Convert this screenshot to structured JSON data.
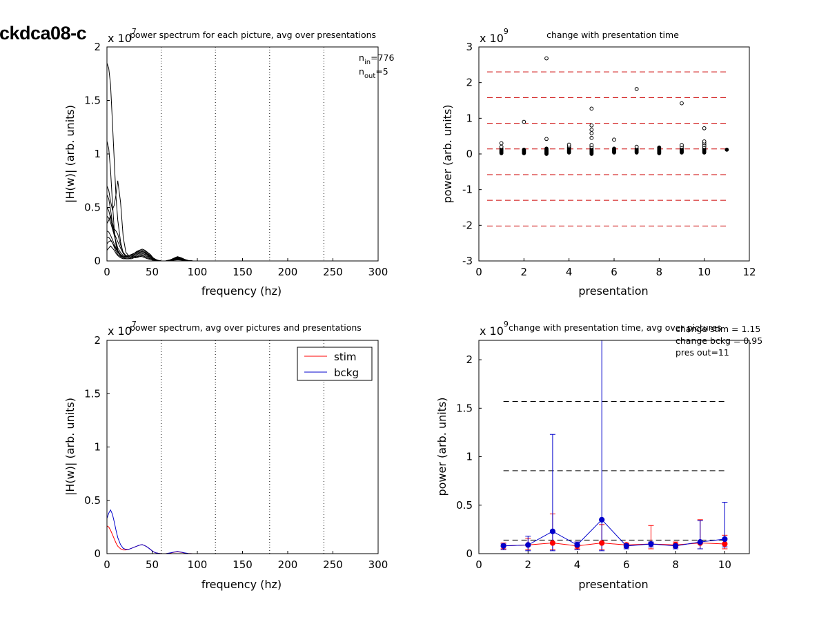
{
  "figure_label": "ckdca08-c",
  "chart_data": [
    {
      "id": "p1",
      "type": "line",
      "title": "power spectrum for each picture, avg over presentations",
      "xlabel": "frequency (hz)",
      "ylabel": "|H(w)| (arb. units)",
      "exponent_base": "x 10",
      "exponent": "7",
      "xlim": [
        0,
        300
      ],
      "ylim": [
        0,
        2
      ],
      "xticks": [
        0,
        50,
        100,
        150,
        200,
        250,
        300
      ],
      "yticks": [
        0,
        0.5,
        1,
        1.5,
        2
      ],
      "ytick_labels": [
        "0",
        "0.5",
        "1",
        "1.5",
        "2"
      ],
      "vlines": [
        60,
        120,
        180,
        240,
        300
      ],
      "annotations": {
        "n_in_base": "n",
        "n_in_sub": "in",
        "n_in_val": "=776",
        "n_out_base": "n",
        "n_out_sub": "out",
        "n_out_val": "=5"
      },
      "freq": [
        0,
        2,
        4,
        6,
        8,
        10,
        12,
        15,
        18,
        21,
        24,
        27,
        30,
        33,
        36,
        39,
        42,
        45,
        48,
        51,
        54,
        57,
        60,
        65,
        70,
        75,
        78,
        82,
        86,
        90,
        95,
        100,
        110,
        120,
        150,
        200,
        250,
        300
      ],
      "series": [
        {
          "values": [
            1.85,
            1.8,
            1.65,
            1.3,
            0.95,
            0.6,
            0.38,
            0.18,
            0.07,
            0.04,
            0.05,
            0.06,
            0.07,
            0.09,
            0.1,
            0.11,
            0.1,
            0.08,
            0.06,
            0.03,
            0.015,
            0.005,
            0.0,
            0.0,
            0.01,
            0.03,
            0.04,
            0.03,
            0.015,
            0.005,
            0.0,
            0.0,
            0.0,
            0.0,
            0.0,
            0.0,
            0.0,
            0.0
          ]
        },
        {
          "values": [
            1.12,
            1.05,
            0.85,
            0.55,
            0.3,
            0.15,
            0.08,
            0.05,
            0.04,
            0.04,
            0.05,
            0.06,
            0.07,
            0.08,
            0.09,
            0.1,
            0.09,
            0.07,
            0.05,
            0.03,
            0.01,
            0.005,
            0.0,
            0.0,
            0.01,
            0.025,
            0.035,
            0.025,
            0.012,
            0.004,
            0.0,
            0.0,
            0.0,
            0.0,
            0.0,
            0.0,
            0.0,
            0.0
          ]
        },
        {
          "values": [
            0.7,
            0.66,
            0.56,
            0.48,
            0.52,
            0.62,
            0.75,
            0.55,
            0.22,
            0.08,
            0.05,
            0.06,
            0.07,
            0.08,
            0.1,
            0.11,
            0.1,
            0.08,
            0.06,
            0.03,
            0.01,
            0.004,
            0.0,
            0.0,
            0.01,
            0.03,
            0.04,
            0.03,
            0.014,
            0.004,
            0.0,
            0.0,
            0.0,
            0.0,
            0.0,
            0.0,
            0.0,
            0.0
          ]
        },
        {
          "values": [
            0.62,
            0.58,
            0.48,
            0.36,
            0.3,
            0.28,
            0.25,
            0.15,
            0.08,
            0.05,
            0.05,
            0.06,
            0.06,
            0.07,
            0.08,
            0.09,
            0.08,
            0.06,
            0.05,
            0.03,
            0.01,
            0.004,
            0.0,
            0.0,
            0.01,
            0.02,
            0.03,
            0.02,
            0.01,
            0.003,
            0.0,
            0.0,
            0.0,
            0.0,
            0.0,
            0.0,
            0.0,
            0.0
          ]
        },
        {
          "values": [
            0.5,
            0.47,
            0.4,
            0.32,
            0.26,
            0.22,
            0.18,
            0.12,
            0.07,
            0.05,
            0.04,
            0.05,
            0.06,
            0.07,
            0.08,
            0.09,
            0.08,
            0.06,
            0.04,
            0.02,
            0.01,
            0.003,
            0.0,
            0.0,
            0.008,
            0.02,
            0.025,
            0.02,
            0.01,
            0.003,
            0.0,
            0.0,
            0.0,
            0.0,
            0.0,
            0.0,
            0.0,
            0.0
          ]
        },
        {
          "values": [
            0.42,
            0.4,
            0.36,
            0.3,
            0.24,
            0.18,
            0.12,
            0.08,
            0.05,
            0.04,
            0.04,
            0.05,
            0.05,
            0.06,
            0.07,
            0.08,
            0.07,
            0.05,
            0.04,
            0.02,
            0.008,
            0.003,
            0.0,
            0.0,
            0.008,
            0.018,
            0.024,
            0.018,
            0.008,
            0.002,
            0.0,
            0.0,
            0.0,
            0.0,
            0.0,
            0.0,
            0.0,
            0.0
          ]
        },
        {
          "values": [
            0.35,
            0.38,
            0.42,
            0.36,
            0.26,
            0.16,
            0.1,
            0.06,
            0.04,
            0.03,
            0.03,
            0.04,
            0.05,
            0.06,
            0.07,
            0.07,
            0.06,
            0.05,
            0.03,
            0.02,
            0.007,
            0.002,
            0.0,
            0.0,
            0.007,
            0.016,
            0.02,
            0.016,
            0.007,
            0.002,
            0.0,
            0.0,
            0.0,
            0.0,
            0.0,
            0.0,
            0.0,
            0.0
          ]
        },
        {
          "values": [
            0.28,
            0.27,
            0.24,
            0.2,
            0.16,
            0.12,
            0.09,
            0.06,
            0.04,
            0.03,
            0.03,
            0.04,
            0.04,
            0.05,
            0.06,
            0.06,
            0.05,
            0.04,
            0.03,
            0.015,
            0.006,
            0.002,
            0.0,
            0.0,
            0.006,
            0.014,
            0.018,
            0.014,
            0.006,
            0.002,
            0.0,
            0.0,
            0.0,
            0.0,
            0.0,
            0.0,
            0.0,
            0.0
          ]
        },
        {
          "values": [
            0.22,
            0.22,
            0.2,
            0.17,
            0.14,
            0.11,
            0.08,
            0.05,
            0.03,
            0.02,
            0.02,
            0.03,
            0.04,
            0.04,
            0.05,
            0.05,
            0.04,
            0.03,
            0.02,
            0.012,
            0.005,
            0.002,
            0.0,
            0.0,
            0.005,
            0.012,
            0.015,
            0.012,
            0.005,
            0.001,
            0.0,
            0.0,
            0.0,
            0.0,
            0.0,
            0.0,
            0.0,
            0.0
          ]
        },
        {
          "values": [
            0.16,
            0.18,
            0.19,
            0.17,
            0.13,
            0.09,
            0.06,
            0.04,
            0.03,
            0.02,
            0.02,
            0.03,
            0.03,
            0.04,
            0.04,
            0.05,
            0.04,
            0.03,
            0.02,
            0.01,
            0.004,
            0.001,
            0.0,
            0.0,
            0.004,
            0.01,
            0.013,
            0.01,
            0.004,
            0.001,
            0.0,
            0.0,
            0.0,
            0.0,
            0.0,
            0.0,
            0.0,
            0.0
          ]
        },
        {
          "values": [
            0.1,
            0.12,
            0.14,
            0.12,
            0.1,
            0.07,
            0.05,
            0.03,
            0.02,
            0.02,
            0.02,
            0.02,
            0.03,
            0.03,
            0.04,
            0.04,
            0.03,
            0.02,
            0.015,
            0.008,
            0.003,
            0.001,
            0.0,
            0.0,
            0.003,
            0.008,
            0.01,
            0.008,
            0.003,
            0.001,
            0.0,
            0.0,
            0.0,
            0.0,
            0.0,
            0.0,
            0.0,
            0.0
          ]
        }
      ]
    },
    {
      "id": "p2",
      "type": "scatter",
      "title": "change with presentation time",
      "xlabel": "presentation",
      "ylabel": "power (arb. units)",
      "exponent_base": "x 10",
      "exponent": "9",
      "xlim": [
        0,
        12
      ],
      "ylim": [
        -3,
        3
      ],
      "xticks": [
        0,
        2,
        4,
        6,
        8,
        10,
        12
      ],
      "yticks": [
        -3,
        -2,
        -1,
        0,
        1,
        2,
        3
      ],
      "ytick_labels": [
        "-3",
        "-2",
        "-1",
        "0",
        "1",
        "2",
        "3"
      ],
      "hlines": [
        2.3,
        1.58,
        0.86,
        0.14,
        -0.58,
        -1.3,
        -2.02
      ],
      "points": [
        {
          "x": 1,
          "ys": [
            0.02,
            0.04,
            0.06,
            0.08,
            0.1,
            0.12,
            0.15,
            0.2,
            0.3
          ]
        },
        {
          "x": 2,
          "ys": [
            0.02,
            0.04,
            0.06,
            0.08,
            0.1,
            0.12,
            0.9
          ]
        },
        {
          "x": 3,
          "ys": [
            0.0,
            0.02,
            0.04,
            0.06,
            0.08,
            0.1,
            0.12,
            0.15,
            0.42,
            2.68
          ]
        },
        {
          "x": 4,
          "ys": [
            0.04,
            0.06,
            0.08,
            0.1,
            0.12,
            0.15,
            0.18,
            0.22,
            0.26
          ]
        },
        {
          "x": 5,
          "ys": [
            0.0,
            0.02,
            0.04,
            0.06,
            0.08,
            0.1,
            0.12,
            0.15,
            0.2,
            0.25,
            0.45,
            0.58,
            0.68,
            0.8,
            1.27
          ]
        },
        {
          "x": 6,
          "ys": [
            0.04,
            0.06,
            0.08,
            0.1,
            0.12,
            0.15,
            0.4
          ]
        },
        {
          "x": 7,
          "ys": [
            0.04,
            0.06,
            0.08,
            0.1,
            0.12,
            0.15,
            0.2,
            1.82
          ]
        },
        {
          "x": 8,
          "ys": [
            0.02,
            0.04,
            0.06,
            0.08,
            0.1,
            0.12,
            0.15,
            0.18
          ]
        },
        {
          "x": 9,
          "ys": [
            0.04,
            0.06,
            0.08,
            0.1,
            0.12,
            0.15,
            0.2,
            0.25,
            1.42
          ]
        },
        {
          "x": 10,
          "ys": [
            0.04,
            0.06,
            0.08,
            0.1,
            0.12,
            0.15,
            0.2,
            0.25,
            0.3,
            0.35,
            0.72
          ]
        },
        {
          "x": 11,
          "ys": [
            0.12
          ]
        }
      ]
    },
    {
      "id": "p3",
      "type": "line",
      "title": "power spectrum, avg over pictures and presentations",
      "xlabel": "frequency (hz)",
      "ylabel": "|H(w)| (arb. units)",
      "exponent_base": "x 10",
      "exponent": "7",
      "xlim": [
        0,
        300
      ],
      "ylim": [
        0,
        2
      ],
      "xticks": [
        0,
        50,
        100,
        150,
        200,
        250,
        300
      ],
      "yticks": [
        0,
        0.5,
        1,
        1.5,
        2
      ],
      "ytick_labels": [
        "0",
        "0.5",
        "1",
        "1.5",
        "2"
      ],
      "vlines": [
        60,
        120,
        180,
        240,
        300
      ],
      "legend": {
        "placement": "top-right"
      },
      "freq": [
        0,
        2,
        4,
        6,
        8,
        10,
        12,
        15,
        18,
        21,
        24,
        27,
        30,
        33,
        36,
        39,
        42,
        45,
        48,
        51,
        54,
        57,
        60,
        65,
        70,
        75,
        78,
        82,
        86,
        90,
        95,
        100,
        110,
        120,
        150,
        200,
        250,
        300
      ],
      "series": [
        {
          "name": "stim",
          "color": "#ff0000",
          "values": [
            0.26,
            0.25,
            0.22,
            0.18,
            0.14,
            0.1,
            0.07,
            0.045,
            0.035,
            0.035,
            0.04,
            0.05,
            0.06,
            0.07,
            0.08,
            0.085,
            0.075,
            0.06,
            0.04,
            0.02,
            0.008,
            0.003,
            0.0,
            0.0,
            0.006,
            0.014,
            0.017,
            0.013,
            0.006,
            0.002,
            0.0,
            0.0,
            0.0,
            0.0,
            0.0,
            0.0,
            0.0,
            0.0
          ]
        },
        {
          "name": "bckg",
          "color": "#0000cc",
          "values": [
            0.33,
            0.38,
            0.41,
            0.37,
            0.3,
            0.22,
            0.15,
            0.085,
            0.05,
            0.04,
            0.04,
            0.05,
            0.06,
            0.07,
            0.08,
            0.085,
            0.075,
            0.06,
            0.04,
            0.02,
            0.008,
            0.003,
            0.0,
            0.0,
            0.007,
            0.016,
            0.02,
            0.015,
            0.007,
            0.002,
            0.0,
            0.0,
            0.0,
            0.0,
            0.0,
            0.0,
            0.0,
            0.0
          ]
        }
      ]
    },
    {
      "id": "p4",
      "type": "line",
      "title": "change with presentation time, avg over pictures",
      "xlabel": "presentation",
      "ylabel": "power (arb. units)",
      "exponent_base": "x 10",
      "exponent": "9",
      "xlim": [
        0,
        11
      ],
      "ylim": [
        0,
        2.2
      ],
      "xticks": [
        0,
        2,
        4,
        6,
        8,
        10
      ],
      "yticks": [
        0,
        0.5,
        1,
        1.5,
        2
      ],
      "ytick_labels": [
        "0",
        "0.5",
        "1",
        "1.5",
        "2"
      ],
      "hlines": [
        1.57,
        0.855,
        0.14
      ],
      "annotations": [
        "change stim = 1.15",
        "change bckg = 0.95",
        "pres out=11"
      ],
      "x": [
        1,
        2,
        3,
        4,
        5,
        6,
        7,
        8,
        9,
        10
      ],
      "series": [
        {
          "name": "stim",
          "color": "#ff0000",
          "values": [
            0.08,
            0.09,
            0.11,
            0.08,
            0.11,
            0.09,
            0.1,
            0.09,
            0.11,
            0.1
          ],
          "err_hi": [
            0.11,
            0.16,
            0.41,
            0.12,
            0.3,
            0.11,
            0.29,
            0.12,
            0.35,
            0.19
          ],
          "err_lo": [
            0.05,
            0.04,
            0.04,
            0.05,
            0.04,
            0.06,
            0.05,
            0.06,
            0.05,
            0.05
          ]
        },
        {
          "name": "bckg",
          "color": "#0000cc",
          "values": [
            0.08,
            0.09,
            0.23,
            0.09,
            0.35,
            0.08,
            0.1,
            0.08,
            0.12,
            0.15
          ],
          "err_hi": [
            0.1,
            0.18,
            1.23,
            0.12,
            2.2,
            0.1,
            0.12,
            0.1,
            0.34,
            0.53
          ],
          "err_lo": [
            0.04,
            0.03,
            0.03,
            0.04,
            0.03,
            0.05,
            0.07,
            0.05,
            0.05,
            0.07
          ]
        }
      ]
    }
  ]
}
